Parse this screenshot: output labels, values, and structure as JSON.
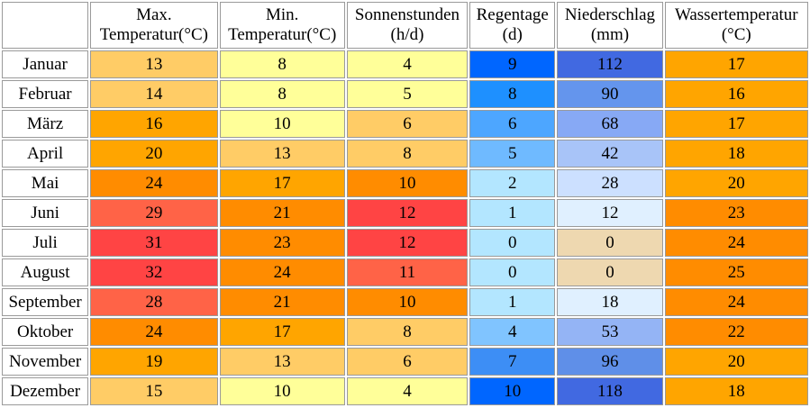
{
  "headers": [
    {
      "line1": "Max.",
      "line2": "Temperatur(°C)"
    },
    {
      "line1": "Min.",
      "line2": "Temperatur(°C)"
    },
    {
      "line1": "Sonnenstunden",
      "line2": "(h/d)"
    },
    {
      "line1": "Regentage",
      "line2": "(d)"
    },
    {
      "line1": "Niederschlag",
      "line2": "(mm)"
    },
    {
      "line1": "Wassertemperatur",
      "line2": "(°C)"
    }
  ],
  "rows": [
    {
      "month": "Januar",
      "values": [
        "13",
        "8",
        "4",
        "9",
        "112",
        "17"
      ],
      "colors": [
        "#ffcc66",
        "#ffff99",
        "#ffff99",
        "#0066ff",
        "#4169e1",
        "#ffa500"
      ]
    },
    {
      "month": "Februar",
      "values": [
        "14",
        "8",
        "5",
        "8",
        "90",
        "16"
      ],
      "colors": [
        "#ffcc66",
        "#ffff99",
        "#ffff99",
        "#1e90ff",
        "#6495ed",
        "#ffa500"
      ]
    },
    {
      "month": "März",
      "values": [
        "16",
        "10",
        "6",
        "6",
        "68",
        "17"
      ],
      "colors": [
        "#ffa500",
        "#ffff99",
        "#ffcc66",
        "#4da6ff",
        "#87a9f5",
        "#ffa500"
      ]
    },
    {
      "month": "April",
      "values": [
        "20",
        "13",
        "8",
        "5",
        "42",
        "18"
      ],
      "colors": [
        "#ffa500",
        "#ffcc66",
        "#ffcc66",
        "#6fbaff",
        "#a8c4f8",
        "#ffa500"
      ]
    },
    {
      "month": "Mai",
      "values": [
        "24",
        "17",
        "10",
        "2",
        "28",
        "20"
      ],
      "colors": [
        "#ff8c00",
        "#ffa500",
        "#ff8c00",
        "#b3e6ff",
        "#cce0ff",
        "#ffa500"
      ]
    },
    {
      "month": "Juni",
      "values": [
        "29",
        "21",
        "12",
        "1",
        "12",
        "23"
      ],
      "colors": [
        "#ff6347",
        "#ff8c00",
        "#ff4444",
        "#b3e6ff",
        "#e0f0ff",
        "#ff8c00"
      ]
    },
    {
      "month": "Juli",
      "values": [
        "31",
        "23",
        "12",
        "0",
        "0",
        "24"
      ],
      "colors": [
        "#ff4444",
        "#ff8c00",
        "#ff4444",
        "#b3e6ff",
        "#eed8b0",
        "#ff8c00"
      ]
    },
    {
      "month": "August",
      "values": [
        "32",
        "24",
        "11",
        "0",
        "0",
        "25"
      ],
      "colors": [
        "#ff4444",
        "#ff8c00",
        "#ff6347",
        "#b3e6ff",
        "#eed8b0",
        "#ff8c00"
      ]
    },
    {
      "month": "September",
      "values": [
        "28",
        "21",
        "10",
        "1",
        "18",
        "24"
      ],
      "colors": [
        "#ff6347",
        "#ff8c00",
        "#ff8c00",
        "#b3e6ff",
        "#e0f0ff",
        "#ff8c00"
      ]
    },
    {
      "month": "Oktober",
      "values": [
        "24",
        "17",
        "8",
        "4",
        "53",
        "22"
      ],
      "colors": [
        "#ff8c00",
        "#ffa500",
        "#ffcc66",
        "#80c4ff",
        "#94b4f5",
        "#ff8c00"
      ]
    },
    {
      "month": "November",
      "values": [
        "19",
        "13",
        "6",
        "7",
        "96",
        "20"
      ],
      "colors": [
        "#ffa500",
        "#ffcc66",
        "#ffcc66",
        "#3d8ef5",
        "#5f8fe8",
        "#ffa500"
      ]
    },
    {
      "month": "Dezember",
      "values": [
        "15",
        "10",
        "4",
        "10",
        "118",
        "18"
      ],
      "colors": [
        "#ffcc66",
        "#ffff99",
        "#ffff99",
        "#0066ff",
        "#4169e1",
        "#ffa500"
      ]
    }
  ]
}
